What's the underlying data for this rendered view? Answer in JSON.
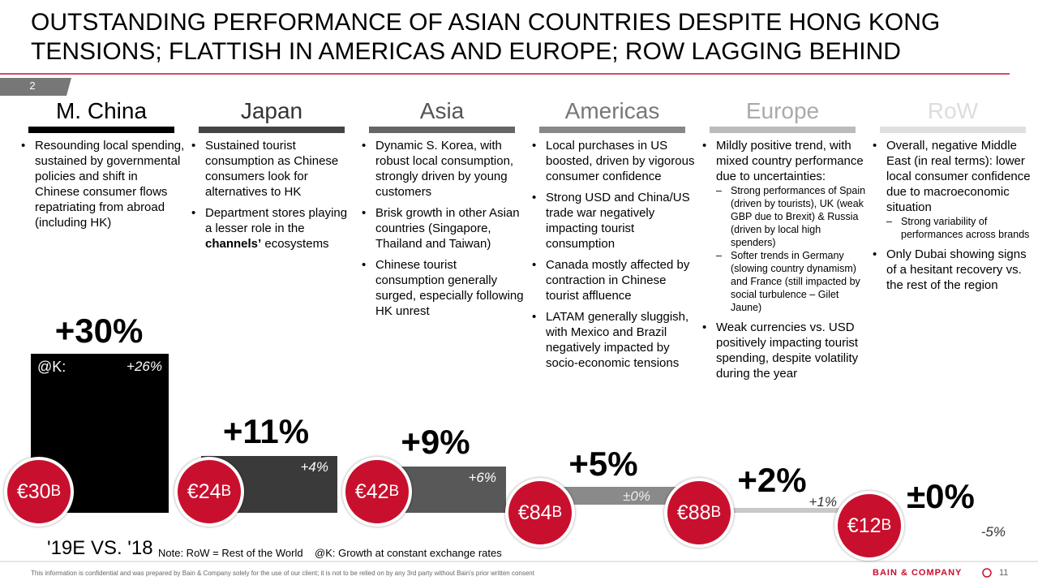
{
  "title": "OUTSTANDING PERFORMANCE OF ASIAN COUNTRIES DESPITE HONG KONG TENSIONS; FLATTISH IN AMERICAS AND EUROPE; ROW LAGGING BEHIND",
  "page_number": "2",
  "regions": [
    {
      "name": "M. China",
      "bullets": [
        [
          "Resounding local spending, sustained by governmental policies and shift in Chinese consumer flows repatriating from abroad (including HK)"
        ]
      ],
      "growth": "+30%",
      "fx_label": "@K:",
      "fx_growth": "+26%",
      "size": "€30",
      "unit": "B"
    },
    {
      "name": "Japan",
      "bullets": [
        [
          "Sustained tourist consumption as Chinese consumers look for alternatives to HK"
        ],
        [
          "Department stores playing a lesser role in the ",
          "channels’",
          " ecosystems"
        ]
      ],
      "growth": "+11%",
      "fx_growth": "+4%",
      "size": "€24",
      "unit": "B"
    },
    {
      "name": "Asia",
      "bullets": [
        [
          "Dynamic S. Korea, with robust local consumption, strongly driven by young customers"
        ],
        [
          "Brisk growth in other Asian countries (Singapore, Thailand and Taiwan)"
        ],
        [
          "Chinese tourist consumption generally surged, especially following HK unrest"
        ]
      ],
      "growth": "+9%",
      "fx_growth": "+6%",
      "size": "€42",
      "unit": "B"
    },
    {
      "name": "Americas",
      "bullets": [
        [
          "Local purchases in US boosted, driven by vigorous consumer confidence"
        ],
        [
          "Strong USD and China/US trade war negatively impacting tourist consumption"
        ],
        [
          "Canada mostly affected by contraction in Chinese tourist affluence"
        ],
        [
          "LATAM generally sluggish, with Mexico and Brazil negatively impacted by socio-economic tensions"
        ]
      ],
      "growth": "+5%",
      "fx_growth": "±0%",
      "size": "€84",
      "unit": "B"
    },
    {
      "name": "Europe",
      "bullets": [
        [
          "Mildly positive trend, with mixed country performance due to uncertainties:"
        ],
        [
          "Weak currencies vs. USD positively impacting tourist spending, despite volatility during the year"
        ]
      ],
      "subbullets": [
        [
          "Strong performances of Spain (driven by tourists), UK (weak GBP due to Brexit) & Russia (driven by local high spenders)",
          "Softer trends in Germany (slowing country dynamism) and France (still impacted by social turbulence – Gilet Jaune)"
        ],
        []
      ],
      "growth": "+2%",
      "fx_growth": "+1%",
      "size": "€88",
      "unit": "B"
    },
    {
      "name": "RoW",
      "bullets": [
        [
          "Overall, negative Middle East (in real terms): lower local consumer confidence due to macroeconomic situation"
        ],
        [
          "Only Dubai showing signs of a hesitant recovery vs. the rest of the region"
        ]
      ],
      "subbullets": [
        [
          "Strong variability of performances across brands"
        ],
        []
      ],
      "growth": "±0%",
      "fx_growth": "-5%",
      "size": "€12",
      "unit": "B"
    }
  ],
  "period": "'19E VS. '18",
  "note": "Note: RoW = Rest of the World    @K: Growth at constant exchange rates",
  "disclaimer": "This information is confidential and was prepared by Bain & Company solely for the use of our client; it is not to be relied on by any 3rd party without Bain's prior written consent",
  "brand": "BAIN & COMPANY",
  "slide_number": "11"
}
